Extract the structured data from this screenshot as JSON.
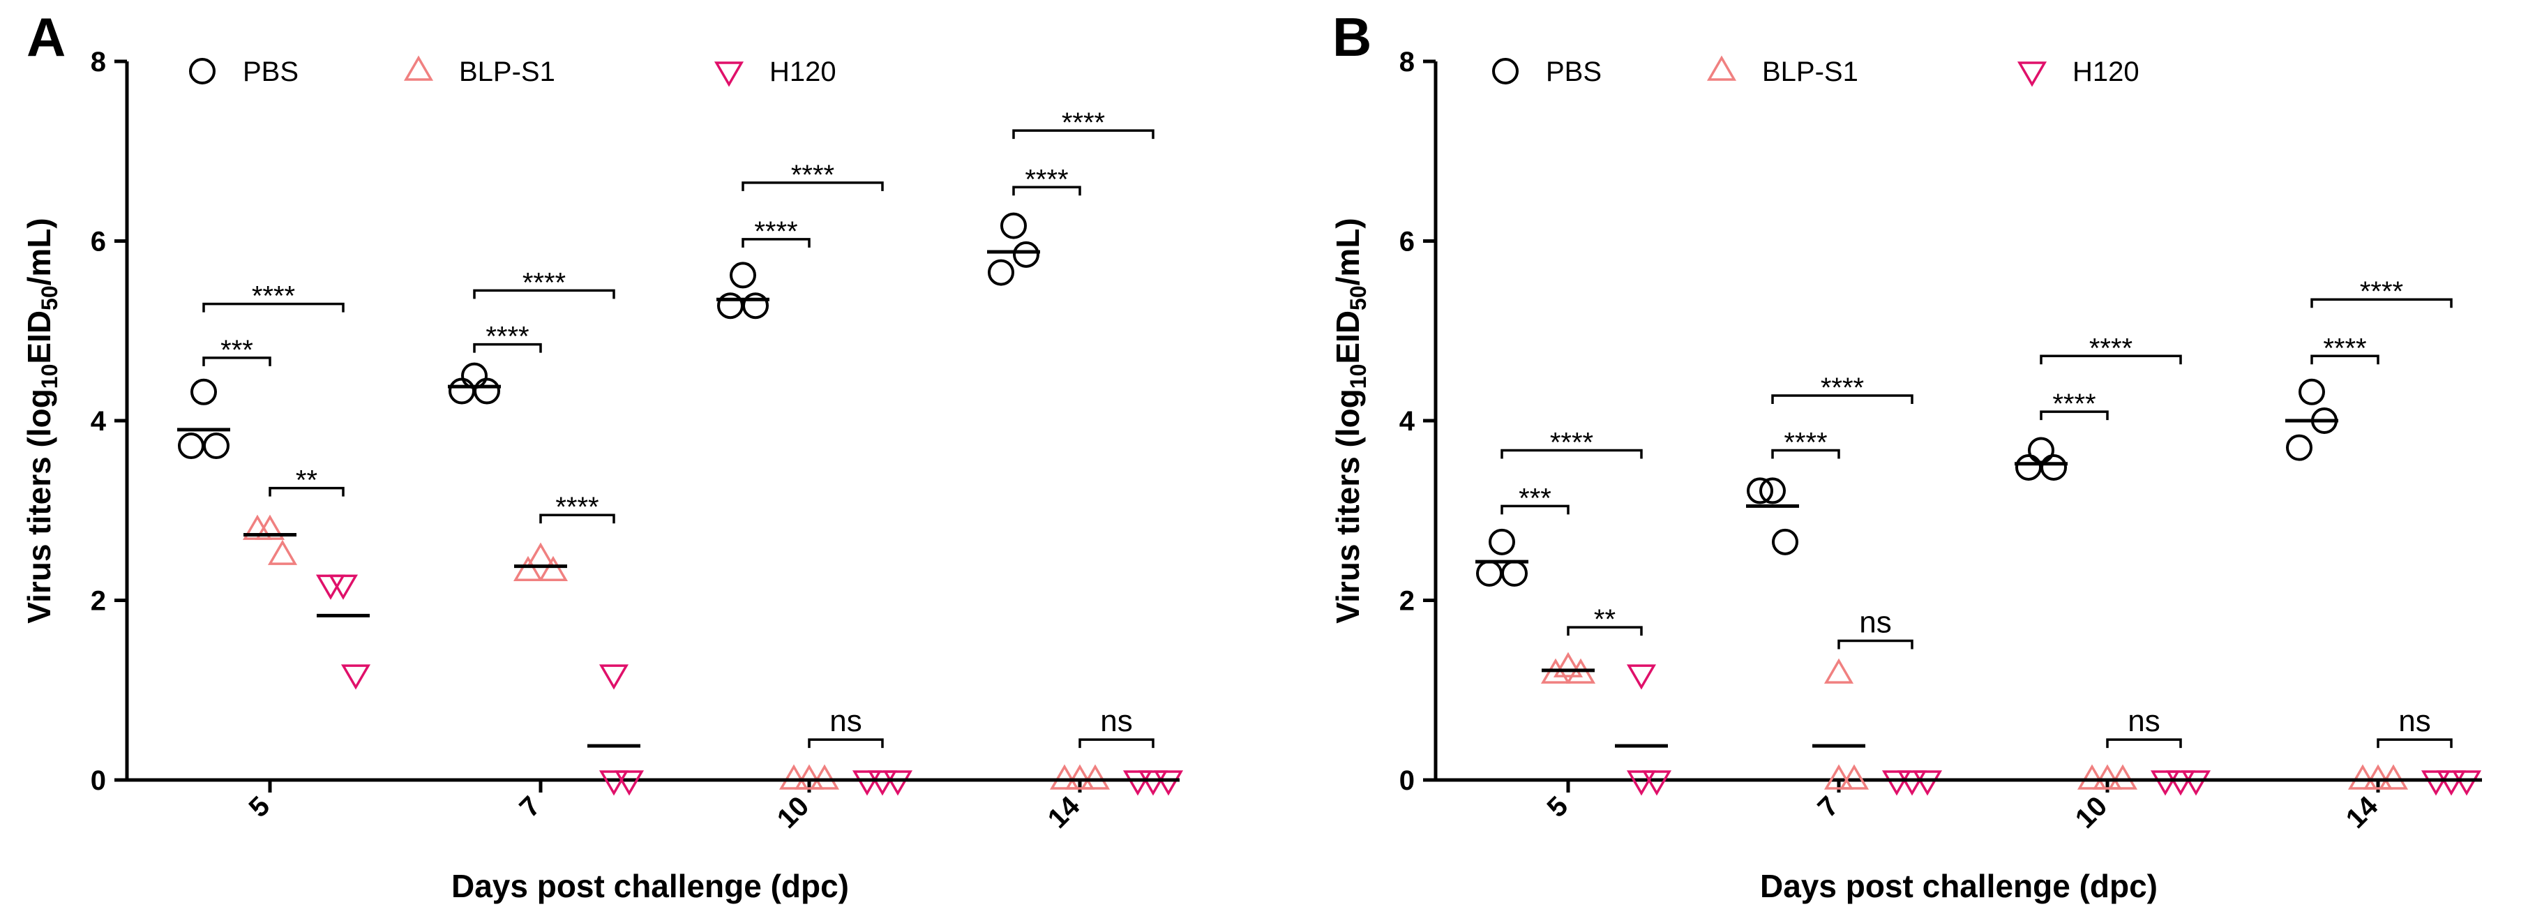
{
  "figure": {
    "panels": [
      {
        "letter": "A"
      },
      {
        "letter": "B"
      }
    ]
  },
  "colors": {
    "PBS": "#000000",
    "BLP-S1": "#f08080",
    "H120": "#e0106a",
    "axis": "#000000"
  },
  "chart_data": [
    {
      "type": "scatter",
      "panel": "A",
      "title": "",
      "xlabel": "Days post challenge (dpc)",
      "ylabel_parts": {
        "pre": "Virus titers (log",
        "sub1": "10",
        "mid": "EID",
        "sub2": "50",
        "post": "/mL)"
      },
      "ylim": [
        0,
        8
      ],
      "yticks": [
        0,
        2,
        4,
        6,
        8
      ],
      "categories": [
        "5",
        "7",
        "10",
        "14"
      ],
      "legend": [
        "PBS",
        "BLP-S1",
        "H120"
      ],
      "series": [
        {
          "name": "PBS",
          "marker": "circle",
          "points": [
            [
              4.32,
              3.72,
              3.72
            ],
            [
              4.5,
              4.33,
              4.33
            ],
            [
              5.62,
              5.28,
              5.28
            ],
            [
              6.17,
              5.65,
              5.85
            ]
          ],
          "means": [
            3.9,
            4.38,
            5.35,
            5.88
          ]
        },
        {
          "name": "BLP-S1",
          "marker": "triangle-up",
          "points": [
            [
              2.78,
              2.78,
              2.5
            ],
            [
              2.47,
              2.32,
              2.32
            ],
            [
              0,
              0,
              0
            ],
            [
              0,
              0,
              0
            ]
          ],
          "means": [
            2.73,
            2.38,
            0,
            0
          ]
        },
        {
          "name": "H120",
          "marker": "triangle-down",
          "points": [
            [
              2.18,
              2.18,
              1.18
            ],
            [
              1.18,
              0,
              0
            ],
            [
              0,
              0,
              0
            ],
            [
              0,
              0,
              0
            ]
          ],
          "means": [
            1.83,
            0.38,
            0,
            0
          ]
        }
      ],
      "significance": [
        {
          "cat": 0,
          "from": "PBS",
          "to": "BLP-S1",
          "y": 4.7,
          "label": "***"
        },
        {
          "cat": 0,
          "from": "PBS",
          "to": "H120",
          "y": 5.3,
          "label": "****"
        },
        {
          "cat": 0,
          "from": "BLP-S1",
          "to": "H120",
          "y": 3.25,
          "label": "**"
        },
        {
          "cat": 1,
          "from": "PBS",
          "to": "BLP-S1",
          "y": 4.85,
          "label": "****"
        },
        {
          "cat": 1,
          "from": "PBS",
          "to": "H120",
          "y": 5.45,
          "label": "****"
        },
        {
          "cat": 1,
          "from": "BLP-S1",
          "to": "H120",
          "y": 2.95,
          "label": "****"
        },
        {
          "cat": 2,
          "from": "PBS",
          "to": "BLP-S1",
          "y": 6.02,
          "label": "****"
        },
        {
          "cat": 2,
          "from": "PBS",
          "to": "H120",
          "y": 6.65,
          "label": "****"
        },
        {
          "cat": 2,
          "from": "BLP-S1",
          "to": "H120",
          "y": 0.45,
          "label": "ns"
        },
        {
          "cat": 3,
          "from": "PBS",
          "to": "BLP-S1",
          "y": 6.6,
          "label": "****"
        },
        {
          "cat": 3,
          "from": "PBS",
          "to": "H120",
          "y": 7.23,
          "label": "****"
        },
        {
          "cat": 3,
          "from": "BLP-S1",
          "to": "H120",
          "y": 0.45,
          "label": "ns"
        }
      ]
    },
    {
      "type": "scatter",
      "panel": "B",
      "title": "",
      "xlabel": "Days post challenge (dpc)",
      "ylabel_parts": {
        "pre": "Virus titers (log",
        "sub1": "10",
        "mid": "EID",
        "sub2": "50",
        "post": "/mL)"
      },
      "ylim": [
        0,
        8
      ],
      "yticks": [
        0,
        2,
        4,
        6,
        8
      ],
      "categories": [
        "5",
        "7",
        "10",
        "14"
      ],
      "legend": [
        "PBS",
        "BLP-S1",
        "H120"
      ],
      "series": [
        {
          "name": "PBS",
          "marker": "circle",
          "points": [
            [
              2.65,
              2.3,
              2.3
            ],
            [
              3.22,
              3.22,
              2.65
            ],
            [
              3.67,
              3.48,
              3.48
            ],
            [
              4.32,
              3.7,
              4.0
            ]
          ],
          "means": [
            2.43,
            3.05,
            3.52,
            4.0
          ]
        },
        {
          "name": "BLP-S1",
          "marker": "triangle-up",
          "points": [
            [
              1.25,
              1.18,
              1.18
            ],
            [
              1.18,
              0,
              0
            ],
            [
              0,
              0,
              0
            ],
            [
              0,
              0,
              0
            ]
          ],
          "means": [
            1.22,
            0.38,
            0,
            0
          ]
        },
        {
          "name": "H120",
          "marker": "triangle-down",
          "points": [
            [
              1.18,
              0,
              0
            ],
            [
              0,
              0,
              0
            ],
            [
              0,
              0,
              0
            ],
            [
              0,
              0,
              0
            ]
          ],
          "means": [
            0.38,
            0,
            0,
            0
          ]
        }
      ],
      "significance": [
        {
          "cat": 0,
          "from": "PBS",
          "to": "BLP-S1",
          "y": 3.05,
          "label": "***"
        },
        {
          "cat": 0,
          "from": "PBS",
          "to": "H120",
          "y": 3.67,
          "label": "****"
        },
        {
          "cat": 0,
          "from": "BLP-S1",
          "to": "H120",
          "y": 1.7,
          "label": "**"
        },
        {
          "cat": 1,
          "from": "PBS",
          "to": "BLP-S1",
          "y": 3.67,
          "label": "****"
        },
        {
          "cat": 1,
          "from": "PBS",
          "to": "H120",
          "y": 4.28,
          "label": "****"
        },
        {
          "cat": 1,
          "from": "BLP-S1",
          "to": "H120",
          "y": 1.55,
          "label": "ns"
        },
        {
          "cat": 2,
          "from": "PBS",
          "to": "BLP-S1",
          "y": 4.1,
          "label": "****"
        },
        {
          "cat": 2,
          "from": "PBS",
          "to": "H120",
          "y": 4.72,
          "label": "****"
        },
        {
          "cat": 2,
          "from": "BLP-S1",
          "to": "H120",
          "y": 0.45,
          "label": "ns"
        },
        {
          "cat": 3,
          "from": "PBS",
          "to": "BLP-S1",
          "y": 4.72,
          "label": "****"
        },
        {
          "cat": 3,
          "from": "PBS",
          "to": "H120",
          "y": 5.35,
          "label": "****"
        },
        {
          "cat": 3,
          "from": "BLP-S1",
          "to": "H120",
          "y": 0.45,
          "label": "ns"
        }
      ]
    }
  ]
}
